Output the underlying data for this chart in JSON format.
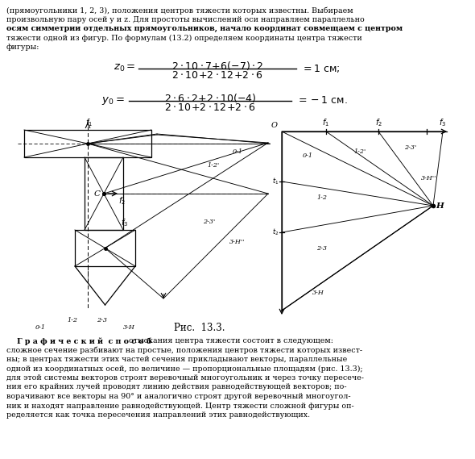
{
  "bg_color": "#ffffff",
  "top_lines": [
    "(прямоугольники 1, 2, 3), положения центров тяжести которых известны. Выбираем",
    "произвольную пару осей y и z. Для простоты вычислений оси направляем параллельно",
    "осям симметрии отдельных прямоугольников, начало координат совмещаем с центром",
    "тяжести одной из фигур. По формулам (13.2) определяем координаты центра тяжести",
    "фигуры:"
  ],
  "bottom_lines": [
    [
      "    Г р а ф и ч е с к и й  с п о с о б ",
      "отыскания центра тяжести состоит в следующем:"
    ],
    [
      "сложное сечение разбивают на простые, положения центров тяжести которых извест-",
      ""
    ],
    [
      "ны; в центрах тяжести этих частей сечения прикладывают векторы, параллельные",
      ""
    ],
    [
      "одной из координатных осей, по величине — пропорциональные площадям (рис. 13.3);",
      ""
    ],
    [
      "для этой системы векторов строят веревочный многоугольник и через точку пересече-",
      ""
    ],
    [
      "ния его крайних лучей проводят линию действия равнодействующей векторов; по-",
      ""
    ],
    [
      "ворачивают все векторы на 90° и аналогично строят другой веревочный многоугол-",
      ""
    ],
    [
      "ник и находят направление равнодействующей. Центр тяжести сложной фигуры оп-",
      ""
    ],
    [
      "ределяется как точка пересечения направлений этих равнодействующих.",
      ""
    ]
  ],
  "fig_caption": "Рис.  13.3."
}
